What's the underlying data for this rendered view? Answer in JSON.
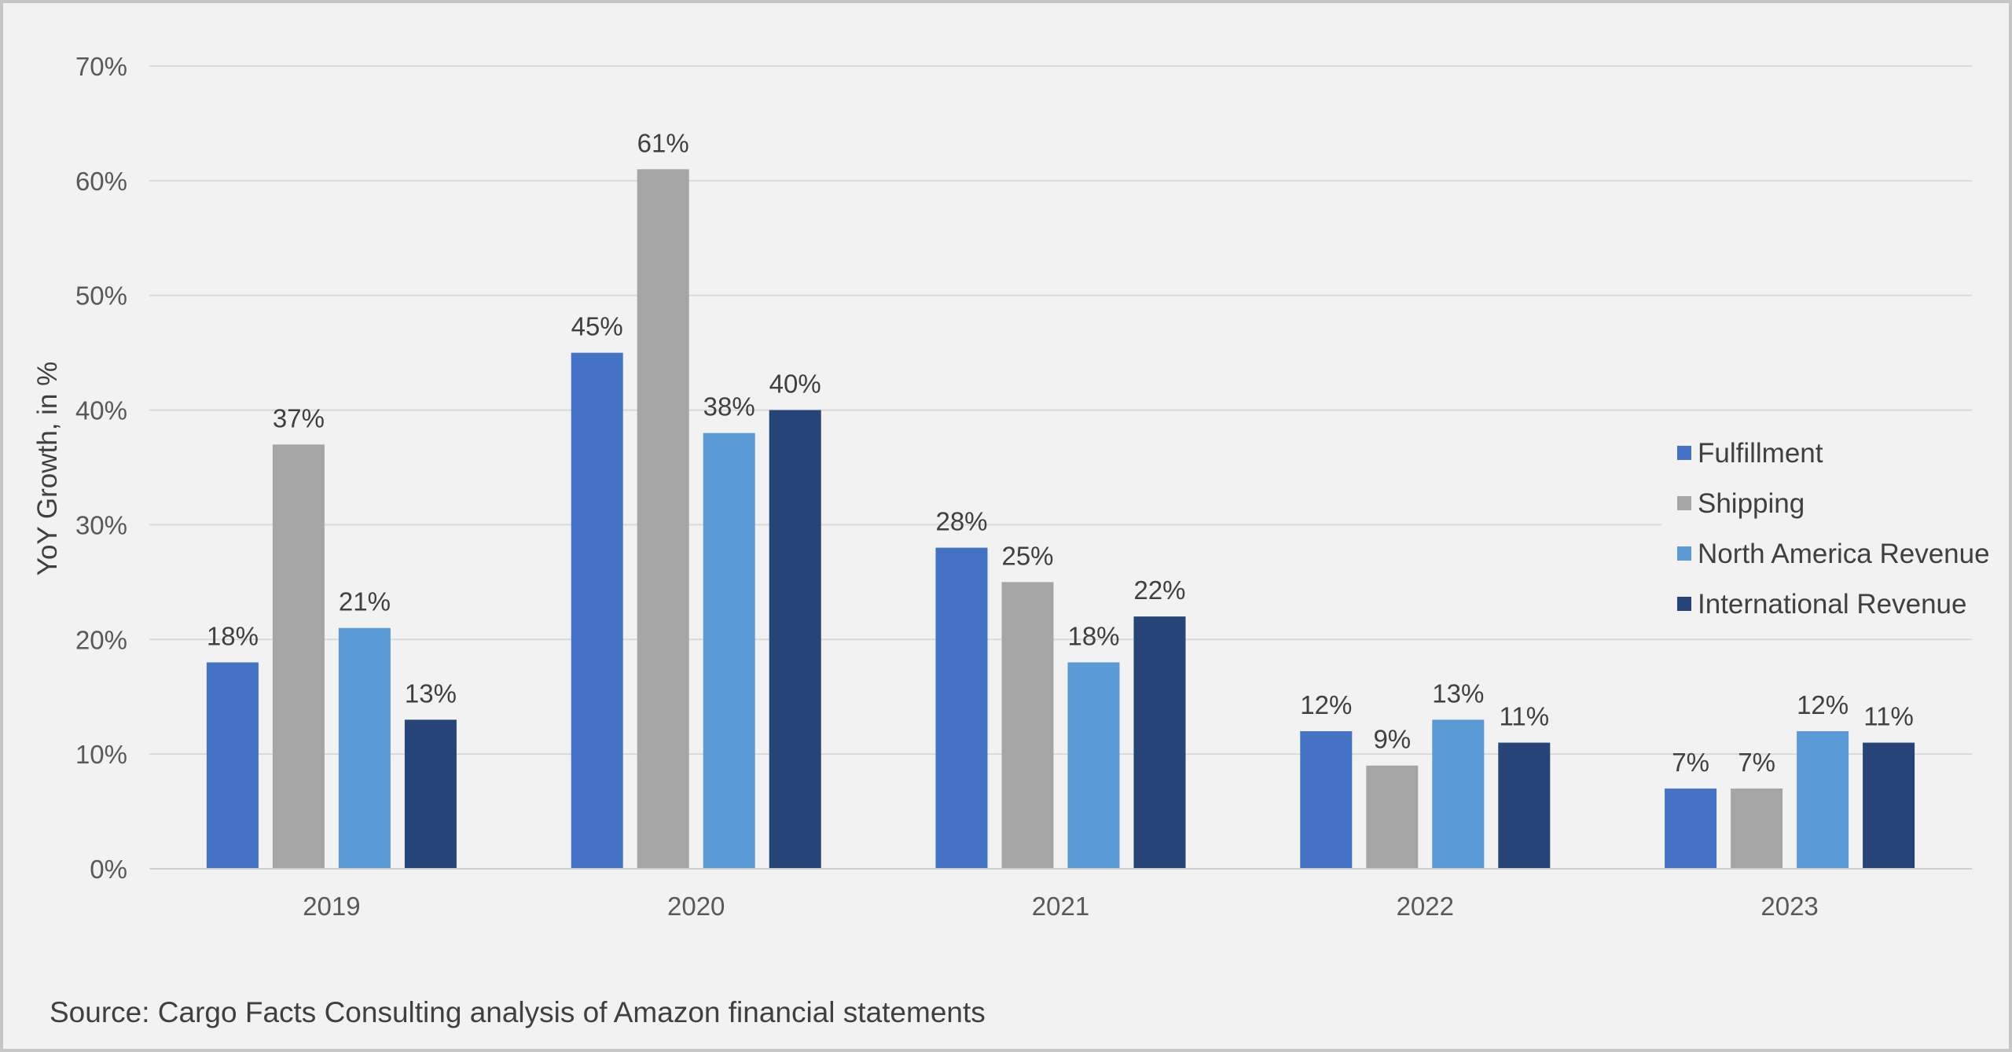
{
  "chart_data": {
    "type": "bar",
    "categories": [
      "2019",
      "2020",
      "2021",
      "2022",
      "2023"
    ],
    "series": [
      {
        "name": "Fulfillment",
        "color": "#4472c4",
        "values": [
          18,
          45,
          28,
          12,
          7
        ],
        "value_labels": [
          "18%",
          "45%",
          "28%",
          "12%",
          "7%"
        ]
      },
      {
        "name": "Shipping",
        "color": "#a5a5a5",
        "values": [
          37,
          61,
          25,
          9,
          7
        ],
        "value_labels": [
          "37%",
          "61%",
          "25%",
          "9%",
          "7%"
        ]
      },
      {
        "name": "North America Revenue",
        "color": "#5b9bd5",
        "values": [
          21,
          38,
          18,
          13,
          12
        ],
        "value_labels": [
          "21%",
          "38%",
          "18%",
          "13%",
          "12%"
        ]
      },
      {
        "name": "International Revenue",
        "color": "#264478",
        "values": [
          13,
          40,
          22,
          11,
          11
        ],
        "value_labels": [
          "13%",
          "40%",
          "22%",
          "11%",
          "11%"
        ]
      }
    ],
    "ylabel": "YoY Growth, in %",
    "xlabel": "",
    "ylim": [
      0,
      70
    ],
    "yticks": [
      0,
      10,
      20,
      30,
      40,
      50,
      60,
      70
    ],
    "ytick_labels": [
      "0%",
      "10%",
      "20%",
      "30%",
      "40%",
      "50%",
      "60%",
      "70%"
    ],
    "grid": true,
    "legend_position": "right"
  },
  "source_note": "Source: Cargo Facts Consulting analysis of Amazon financial statements"
}
